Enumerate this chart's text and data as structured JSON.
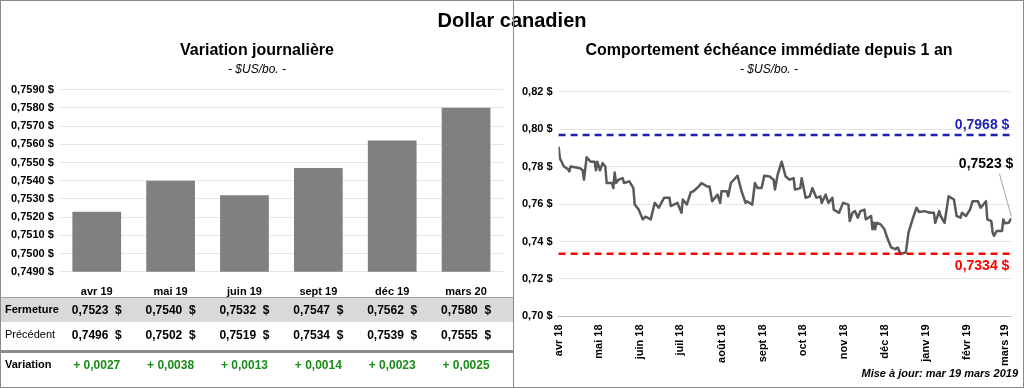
{
  "chart_data": [
    {
      "type": "bar",
      "title": "Variation journalière",
      "subtitle": "- $US/bo. -",
      "annotations": [
        "Dollar canadien"
      ],
      "categories": [
        "avr 19",
        "mai 19",
        "juin 19",
        "sept 19",
        "déc 19",
        "mars 20"
      ],
      "series": [
        {
          "name": "Fermeture",
          "color": "#808080",
          "values": [
            0.7523,
            0.754,
            0.7532,
            0.7547,
            0.7562,
            0.758
          ],
          "value_labels": [
            "0,7523  $",
            "0,7540  $",
            "0,7532  $",
            "0,7547  $",
            "0,7562  $",
            "0,7580  $"
          ]
        }
      ],
      "ylim": [
        0.749,
        0.759
      ],
      "yticks": [
        {
          "value": 0.749,
          "label": "0,7490 $"
        },
        {
          "value": 0.75,
          "label": "0,7500 $"
        },
        {
          "value": 0.751,
          "label": "0,7510 $"
        },
        {
          "value": 0.752,
          "label": "0,7520 $"
        },
        {
          "value": 0.753,
          "label": "0,7530 $"
        },
        {
          "value": 0.754,
          "label": "0,7540 $"
        },
        {
          "value": 0.755,
          "label": "0,7550 $"
        },
        {
          "value": 0.756,
          "label": "0,7560 $"
        },
        {
          "value": 0.757,
          "label": "0,7570 $"
        },
        {
          "value": 0.758,
          "label": "0,7580 $"
        },
        {
          "value": 0.759,
          "label": "0,7590 $"
        }
      ],
      "grid": "y",
      "legend": false
    },
    {
      "type": "other",
      "annotations": [
        "Précédent",
        "0,7496  $",
        "0,7502  $",
        "0,7519  $",
        "0,7534  $",
        "0,7539  $",
        "0,7555  $",
        "Variation",
        "+ 0,0027",
        "+ 0,0038",
        "+ 0,0013",
        "+ 0,0014",
        "+ 0,0023",
        "+ 0,0025"
      ]
    },
    {
      "type": "line",
      "title": "Comportement échéance immédiate depuis 1 an",
      "subtitle": "- $US/bo. -",
      "annotations": [
        "Mise à jour: mar 19 mars 2019",
        {
          "text": "0,7523 $",
          "x": "2019-03-06",
          "y": 0.7523
        }
      ],
      "series": [
        {
          "color": "#595959",
          "x": [
            "2018-04-01",
            "2018-04-02",
            "2018-04-05",
            "2018-04-08",
            "2018-04-09",
            "2018-04-10",
            "2018-04-17",
            "2018-04-19",
            "2018-04-20",
            "2018-04-22",
            "2018-04-25",
            "2018-04-28",
            "2018-04-29",
            "2018-04-30",
            "2018-05-02",
            "2018-05-04",
            "2018-05-06",
            "2018-05-07",
            "2018-05-11",
            "2018-05-12",
            "2018-05-13",
            "2018-05-14",
            "2018-05-16",
            "2018-05-19",
            "2018-05-20",
            "2018-05-24",
            "2018-05-27",
            "2018-05-28",
            "2018-05-31",
            "2018-06-03",
            "2018-06-05",
            "2018-06-09",
            "2018-06-12",
            "2018-06-15",
            "2018-06-19",
            "2018-06-23",
            "2018-06-24",
            "2018-06-29",
            "2018-07-02",
            "2018-07-03",
            "2018-07-06",
            "2018-07-09",
            "2018-07-11",
            "2018-07-15",
            "2018-07-17",
            "2018-07-21",
            "2018-07-23",
            "2018-07-25",
            "2018-07-29",
            "2018-07-31",
            "2018-08-01",
            "2018-08-05",
            "2018-08-06",
            "2018-08-08",
            "2018-08-13",
            "2018-08-16",
            "2018-08-19",
            "2018-08-20",
            "2018-08-24",
            "2018-08-26",
            "2018-08-28",
            "2018-08-31",
            "2018-09-02",
            "2018-09-06",
            "2018-09-09",
            "2018-09-10",
            "2018-09-12",
            "2018-09-15",
            "2018-09-18",
            "2018-09-21",
            "2018-09-24",
            "2018-09-25",
            "2018-09-29",
            "2018-09-30",
            "2018-10-03",
            "2018-10-06",
            "2018-10-08",
            "2018-10-11",
            "2018-10-14",
            "2018-10-15",
            "2018-10-18",
            "2018-10-20",
            "2018-10-23",
            "2018-10-24",
            "2018-10-28",
            "2018-10-31",
            "2018-11-04",
            "2018-11-05",
            "2018-11-07",
            "2018-11-09",
            "2018-11-11",
            "2018-11-13",
            "2018-11-16",
            "2018-11-17",
            "2018-11-21",
            "2018-11-22",
            "2018-11-23",
            "2018-11-24",
            "2018-11-25",
            "2018-11-28",
            "2018-12-01",
            "2018-12-03",
            "2018-12-06",
            "2018-12-09",
            "2018-12-11",
            "2018-12-13",
            "2018-12-17",
            "2018-12-19",
            "2018-12-22",
            "2018-12-25",
            "2018-12-27",
            "2018-12-31",
            "2019-01-04",
            "2019-01-07",
            "2019-01-08",
            "2019-01-11",
            "2019-01-12",
            "2019-01-15",
            "2019-01-18",
            "2019-01-22",
            "2019-01-24",
            "2019-01-27",
            "2019-01-28",
            "2019-01-31",
            "2019-02-03",
            "2019-02-05",
            "2019-02-09",
            "2019-02-11",
            "2019-02-15",
            "2019-02-16",
            "2019-02-19",
            "2019-02-20",
            "2019-02-21",
            "2019-02-23",
            "2019-02-27",
            "2019-02-28",
            "2019-03-01",
            "2019-03-04",
            "2019-03-06"
          ],
          "values": [
            0.7906,
            0.7844,
            0.78,
            0.7786,
            0.7774,
            0.78,
            0.7791,
            0.778,
            0.773,
            0.7849,
            0.7826,
            0.7826,
            0.778,
            0.7826,
            0.778,
            0.7818,
            0.78,
            0.7712,
            0.7712,
            0.7685,
            0.7768,
            0.7712,
            0.773,
            0.7738,
            0.7712,
            0.7721,
            0.7685,
            0.7597,
            0.757,
            0.7518,
            0.7532,
            0.7518,
            0.7606,
            0.758,
            0.7633,
            0.7633,
            0.7589,
            0.7606,
            0.7553,
            0.7624,
            0.7597,
            0.7663,
            0.7668,
            0.7694,
            0.7712,
            0.7694,
            0.7694,
            0.7615,
            0.765,
            0.7606,
            0.7668,
            0.7668,
            0.7641,
            0.7712,
            0.7751,
            0.7668,
            0.7606,
            0.7615,
            0.7597,
            0.7712,
            0.7685,
            0.7685,
            0.7751,
            0.7747,
            0.773,
            0.7677,
            0.7756,
            0.7826,
            0.7747,
            0.773,
            0.7738,
            0.7677,
            0.7685,
            0.7738,
            0.7633,
            0.7641,
            0.7685,
            0.7633,
            0.7641,
            0.7606,
            0.765,
            0.7606,
            0.7633,
            0.757,
            0.7553,
            0.7606,
            0.7597,
            0.7509,
            0.7553,
            0.7562,
            0.7527,
            0.7562,
            0.757,
            0.7518,
            0.7536,
            0.7465,
            0.75,
            0.7465,
            0.75,
            0.7492,
            0.7465,
            0.7421,
            0.7368,
            0.7359,
            0.7368,
            0.7333,
            0.7342,
            0.7448,
            0.7518,
            0.758,
            0.7557,
            0.7562,
            0.7553,
            0.7553,
            0.75,
            0.7562,
            0.7536,
            0.75,
            0.7641,
            0.7624,
            0.7536,
            0.7527,
            0.7553,
            0.7536,
            0.757,
            0.7615,
            0.7615,
            0.758,
            0.7615,
            0.7518,
            0.7509,
            0.7448,
            0.743,
            0.7456,
            0.7456,
            0.7518,
            0.7497,
            0.75,
            0.7523
          ]
        }
      ],
      "xlim": [
        "2018-04-01",
        "2019-03-06"
      ],
      "xticks": [
        {
          "value": "2018-04-01",
          "label": "avr 18"
        },
        {
          "value": "2018-05-01",
          "label": "mai 18"
        },
        {
          "value": "2018-06-01",
          "label": "juin 18"
        },
        {
          "value": "2018-07-01",
          "label": "juil 18"
        },
        {
          "value": "2018-08-01",
          "label": "août 18"
        },
        {
          "value": "2018-09-01",
          "label": "sept 18"
        },
        {
          "value": "2018-10-01",
          "label": "oct 18"
        },
        {
          "value": "2018-11-01",
          "label": "nov 18"
        },
        {
          "value": "2018-12-01",
          "label": "déc 18"
        },
        {
          "value": "2019-01-01",
          "label": "janv 19"
        },
        {
          "value": "2019-02-01",
          "label": "févr 19"
        },
        {
          "value": "2019-03-01",
          "label": "mars 19"
        }
      ],
      "ylim": [
        0.7,
        0.82
      ],
      "yticks": [
        {
          "value": 0.7,
          "label": "0,70 $"
        },
        {
          "value": 0.72,
          "label": "0,72 $"
        },
        {
          "value": 0.74,
          "label": "0,74 $"
        },
        {
          "value": 0.76,
          "label": "0,76 $"
        },
        {
          "value": 0.78,
          "label": "0,78 $"
        },
        {
          "value": 0.8,
          "label": "0,80 $"
        },
        {
          "value": 0.82,
          "label": "0,82 $"
        }
      ],
      "ref_lines": [
        {
          "axis": "y",
          "value": 0.7968,
          "label": "0,7968 $",
          "color": "#1f1fb4",
          "line_style": "dashed"
        },
        {
          "axis": "y",
          "value": 0.7334,
          "label": "0,7334 $",
          "color": "#ff0000",
          "line_style": "dashed"
        }
      ],
      "grid": "y",
      "legend": false,
      "line_style": "solid",
      "marker": "none"
    }
  ]
}
